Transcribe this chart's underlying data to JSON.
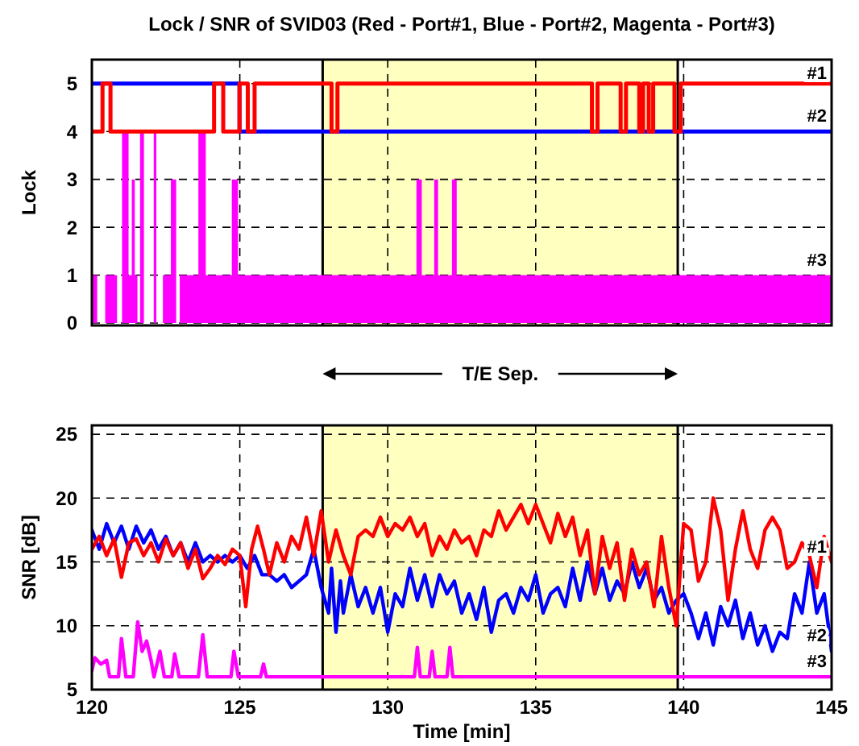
{
  "chart_data": [
    {
      "type": "step",
      "title": "Lock / SNR of SVID03 (Red - Port#1, Blue - Port#2, Magenta - Port#3)",
      "ylabel": "Lock",
      "xlim": [
        120,
        145
      ],
      "xticks": [
        120,
        125,
        130,
        135,
        140,
        145
      ],
      "ylim": [
        -0.05,
        5.5
      ],
      "yticks": [
        0,
        1,
        2,
        3,
        4,
        5
      ],
      "grid": true,
      "tick_labels": "y",
      "ref_lines": [
        {
          "axis": "x",
          "value": 127.8,
          "color": "#000000"
        },
        {
          "axis": "x",
          "value": 139.8,
          "color": "#000000"
        }
      ],
      "bands": [
        {
          "axis": "x",
          "from": 127.8,
          "to": 139.8,
          "color": "#ffffc0"
        }
      ],
      "series": [
        {
          "name": "#3",
          "type": "area",
          "color": "#ff00ff",
          "x": [
            120,
            120.18,
            120.45,
            120.85,
            121.02,
            121.24,
            121.35,
            121.45,
            121.54,
            121.63,
            121.76,
            122.09,
            122.18,
            122.4,
            122.67,
            122.85,
            122.97,
            123.6,
            123.85,
            124.73,
            124.94,
            130.97,
            131.15,
            131.57,
            131.7,
            132.17,
            132.33,
            145
          ],
          "values": [
            1,
            0,
            1,
            0,
            4,
            1,
            3,
            1,
            0,
            4,
            0,
            4,
            0,
            1,
            3,
            0,
            1,
            4,
            1,
            3,
            1,
            3,
            1,
            3,
            1,
            3,
            1,
            1
          ]
        },
        {
          "name": "#2",
          "color": "#0000ff",
          "x": [
            120,
            124.99,
            145
          ],
          "values": [
            5,
            4,
            4
          ]
        },
        {
          "name": "#1",
          "color": "#ff0000",
          "x": [
            120,
            120.36,
            120.63,
            124.13,
            124.44,
            124.99,
            125.27,
            125.5,
            128.1,
            128.3,
            136.9,
            137.09,
            137.87,
            138.05,
            138.5,
            138.63,
            138.82,
            138.97,
            139.69,
            139.9,
            145
          ],
          "values": [
            4,
            5,
            4,
            5,
            4,
            5,
            4,
            5,
            4,
            5,
            4,
            5,
            4,
            5,
            4,
            5,
            4,
            5,
            4,
            5,
            5
          ]
        }
      ]
    },
    {
      "type": "line",
      "xlabel": "Time [min]",
      "ylabel": "SNR [dB]",
      "xlim": [
        120,
        145
      ],
      "xticks": [
        120,
        125,
        130,
        135,
        140,
        145
      ],
      "ylim": [
        5,
        25.7
      ],
      "yticks": [
        5,
        10,
        15,
        20,
        25
      ],
      "grid": true,
      "ref_lines": [
        {
          "axis": "x",
          "value": 127.8,
          "color": "#000000"
        },
        {
          "axis": "x",
          "value": 139.8,
          "color": "#000000"
        }
      ],
      "annotations": [
        "T/E Sep."
      ],
      "bands": [
        {
          "axis": "x",
          "from": 127.8,
          "to": 139.8,
          "color": "#ffffc0"
        }
      ],
      "series": [
        {
          "name": "#3",
          "color": "#ff00ff",
          "x": [
            120,
            120.1,
            120.3,
            120.5,
            120.6,
            120.9,
            121.0,
            121.15,
            121.4,
            121.55,
            121.7,
            121.85,
            122.0,
            122.1,
            122.3,
            122.45,
            122.7,
            122.8,
            122.95,
            123.6,
            123.75,
            123.9,
            124.7,
            124.8,
            124.95,
            125.7,
            125.8,
            125.9,
            130.9,
            131.0,
            131.1,
            131.4,
            131.5,
            131.6,
            132.0,
            132.1,
            132.2,
            145
          ],
          "values": [
            6.5,
            7.5,
            7,
            7.3,
            6,
            6,
            9,
            6,
            6,
            10.3,
            8,
            8.8,
            7.3,
            6,
            8,
            6,
            6,
            7.8,
            6,
            6,
            9.3,
            6,
            6,
            8,
            6,
            6,
            7,
            6,
            6,
            8.3,
            6,
            6,
            8,
            6,
            6,
            8.3,
            6,
            6
          ]
        },
        {
          "name": "#2",
          "color": "#0000ff",
          "x": [
            120.0,
            120.25,
            120.5,
            120.75,
            121.0,
            121.25,
            121.5,
            121.75,
            122.0,
            122.25,
            122.5,
            122.75,
            123.0,
            123.25,
            123.5,
            123.75,
            124.0,
            124.25,
            124.5,
            124.75,
            125.0,
            125.25,
            125.5,
            125.75,
            126.0,
            126.25,
            126.5,
            126.75,
            127.0,
            127.25,
            127.5,
            127.75,
            128.0,
            128.1,
            128.25,
            128.4,
            128.5,
            128.75,
            129.0,
            129.25,
            129.5,
            129.75,
            130.0,
            130.25,
            130.5,
            130.75,
            131.0,
            131.25,
            131.5,
            131.75,
            132.0,
            132.25,
            132.5,
            132.75,
            133.0,
            133.25,
            133.5,
            133.75,
            134.0,
            134.25,
            134.5,
            134.75,
            135.0,
            135.25,
            135.5,
            135.75,
            136.0,
            136.25,
            136.5,
            136.75,
            137.0,
            137.25,
            137.5,
            137.75,
            138.0,
            138.25,
            138.5,
            138.75,
            139.0,
            139.25,
            139.5,
            139.75,
            140.0,
            140.25,
            140.5,
            140.75,
            141.0,
            141.25,
            141.5,
            141.75,
            142.0,
            142.25,
            142.5,
            142.75,
            143.0,
            143.25,
            143.5,
            143.75,
            144.0,
            144.25,
            144.5,
            144.75,
            145.0
          ],
          "values": [
            17.5,
            16.0,
            18.0,
            16.5,
            17.8,
            16.0,
            17.8,
            16.5,
            17.5,
            16.0,
            17.0,
            15.5,
            16.5,
            15.0,
            16.5,
            15.0,
            15.5,
            15.0,
            15.5,
            15.0,
            15.5,
            14.5,
            15.5,
            14.0,
            14.0,
            13.5,
            14.0,
            13.0,
            13.5,
            14.0,
            16.0,
            13.0,
            11.0,
            14.5,
            9.5,
            13.5,
            11.0,
            14.0,
            11.5,
            13.0,
            11.0,
            13.0,
            9.5,
            12.5,
            11.5,
            14.5,
            12.0,
            14.0,
            11.5,
            14.0,
            12.5,
            13.5,
            11.0,
            12.5,
            10.5,
            13.0,
            9.5,
            12.0,
            12.5,
            11.0,
            13.0,
            12.0,
            14.0,
            11.0,
            12.5,
            13.0,
            11.5,
            14.5,
            12.0,
            15.0,
            12.5,
            14.5,
            12.0,
            13.5,
            12.5,
            15.0,
            13.0,
            14.5,
            12.0,
            13.0,
            11.0,
            12.0,
            12.5,
            11.0,
            9.0,
            11.0,
            8.5,
            11.5,
            10.0,
            12.0,
            9.0,
            11.0,
            8.5,
            10.0,
            8.0,
            9.5,
            9.0,
            12.5,
            11.0,
            15.0,
            11.0,
            12.5,
            8.0
          ]
        },
        {
          "name": "#1",
          "color": "#ff0000",
          "x": [
            120.0,
            120.25,
            120.5,
            120.75,
            121.0,
            121.25,
            121.5,
            121.75,
            122.0,
            122.25,
            122.5,
            122.75,
            123.0,
            123.25,
            123.5,
            123.75,
            124.0,
            124.25,
            124.5,
            124.75,
            125.0,
            125.2,
            125.4,
            125.6,
            125.8,
            126.0,
            126.25,
            126.5,
            126.75,
            127.0,
            127.25,
            127.5,
            127.75,
            128.0,
            128.25,
            128.5,
            128.75,
            129.0,
            129.25,
            129.5,
            129.75,
            130.0,
            130.25,
            130.5,
            130.75,
            131.0,
            131.25,
            131.5,
            131.75,
            132.0,
            132.25,
            132.5,
            132.75,
            133.0,
            133.25,
            133.5,
            133.75,
            134.0,
            134.25,
            134.5,
            134.75,
            135.0,
            135.25,
            135.5,
            135.75,
            136.0,
            136.25,
            136.5,
            136.75,
            137.0,
            137.25,
            137.5,
            137.75,
            138.0,
            138.25,
            138.5,
            138.75,
            139.0,
            139.25,
            139.5,
            139.75,
            140.0,
            140.25,
            140.5,
            140.75,
            141.0,
            141.25,
            141.5,
            141.75,
            142.0,
            142.25,
            142.5,
            142.75,
            143.0,
            143.25,
            143.5,
            143.75,
            144.0,
            144.25,
            144.5,
            144.75,
            145.0
          ],
          "values": [
            16.0,
            17.0,
            15.5,
            16.8,
            13.8,
            16.5,
            16.8,
            15.5,
            16.5,
            15.0,
            16.8,
            15.5,
            16.5,
            14.5,
            16.0,
            13.7,
            14.5,
            15.5,
            14.8,
            16.0,
            15.5,
            11.5,
            16.0,
            17.8,
            16.0,
            14.0,
            16.5,
            15.0,
            17.0,
            16.0,
            18.5,
            15.5,
            19.0,
            15.0,
            17.5,
            15.5,
            14.0,
            17.0,
            17.5,
            17.0,
            18.5,
            17.0,
            18.0,
            17.5,
            18.5,
            17.0,
            18.0,
            15.5,
            17.0,
            16.0,
            17.5,
            16.5,
            17.0,
            15.5,
            17.5,
            17.0,
            19.0,
            17.5,
            18.5,
            19.5,
            18.0,
            19.5,
            18.0,
            16.5,
            18.8,
            17.0,
            18.5,
            15.5,
            17.5,
            12.5,
            17.0,
            14.5,
            16.5,
            12.0,
            16.0,
            14.0,
            15.0,
            11.5,
            17.0,
            13.0,
            10.0,
            18.0,
            17.5,
            13.5,
            15.0,
            20.0,
            17.5,
            12.0,
            16.0,
            19.0,
            16.0,
            14.5,
            17.5,
            18.5,
            17.5,
            14.5,
            15.0,
            16.5,
            15.5,
            13.0,
            17.0,
            15.0
          ]
        }
      ]
    }
  ]
}
